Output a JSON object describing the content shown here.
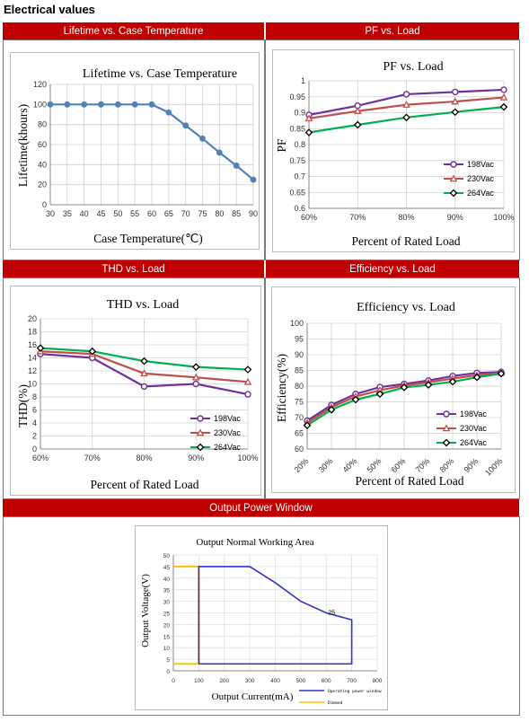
{
  "page_title": "Electrical values",
  "sections": {
    "lifetime": "Lifetime vs. Case Temperature",
    "pf": "PF vs. Load",
    "thd": "THD vs. Load",
    "efficiency": "Efficiency vs. Load",
    "opw": "Output Power Window"
  },
  "colors": {
    "header_bg": "#c00000",
    "s198": "#7030a0",
    "s230": "#c0504d",
    "s264": "#00b050",
    "lifetime_line": "#4f81bd",
    "operating": "#3333cc",
    "dimmed": "#ffc000"
  },
  "chart_data": [
    {
      "id": "lifetime",
      "type": "line",
      "title": "Lifetime vs. Case Temperature",
      "xlabel": "Case Temperature(℃)",
      "ylabel": "Lifetime(khours)",
      "x": [
        30,
        35,
        40,
        45,
        50,
        55,
        60,
        65,
        70,
        75,
        80,
        85,
        90
      ],
      "xticks": [
        "30",
        "35",
        "40",
        "45",
        "50",
        "55",
        "60",
        "65",
        "70",
        "75",
        "80",
        "85",
        "90"
      ],
      "ylim": [
        0,
        120
      ],
      "yticks": [
        "0",
        "20",
        "40",
        "60",
        "80",
        "100",
        "120"
      ],
      "grid": true,
      "series": [
        {
          "values": [
            100,
            100,
            100,
            100,
            100,
            100,
            100,
            92,
            79,
            66,
            52,
            39,
            25
          ]
        }
      ]
    },
    {
      "id": "pf",
      "type": "line",
      "title": "PF vs. Load",
      "xlabel": "Percent of Rated Load",
      "ylabel": "PF",
      "x": [
        60,
        70,
        80,
        90,
        100
      ],
      "xticks": [
        "60%",
        "70%",
        "80%",
        "90%",
        "100%"
      ],
      "ylim": [
        0.6,
        1.0
      ],
      "yticks": [
        "0.6",
        "0.65",
        "0.7",
        "0.75",
        "0.8",
        "0.85",
        "0.9",
        "0.95",
        "1"
      ],
      "grid": true,
      "legend": "bottom-right",
      "series": [
        {
          "name": "198Vac",
          "values": [
            0.893,
            0.922,
            0.958,
            0.965,
            0.972
          ]
        },
        {
          "name": "230Vac",
          "values": [
            0.882,
            0.905,
            0.925,
            0.935,
            0.948
          ]
        },
        {
          "name": "264Vac",
          "values": [
            0.838,
            0.862,
            0.885,
            0.902,
            0.918
          ]
        }
      ]
    },
    {
      "id": "thd",
      "type": "line",
      "title": "THD vs. Load",
      "xlabel": "Percent of Rated Load",
      "ylabel": "THD(%)",
      "x": [
        60,
        70,
        80,
        90,
        100
      ],
      "xticks": [
        "60%",
        "70%",
        "80%",
        "90%",
        "100%"
      ],
      "ylim": [
        0,
        20
      ],
      "yticks": [
        "0",
        "2",
        "4",
        "6",
        "8",
        "10",
        "12",
        "14",
        "16",
        "18",
        "20"
      ],
      "grid": true,
      "legend": "bottom-right",
      "series": [
        {
          "name": "198Vac",
          "values": [
            14.6,
            14.0,
            9.6,
            10.0,
            8.4
          ]
        },
        {
          "name": "230Vac",
          "values": [
            15.0,
            14.6,
            11.6,
            11.0,
            10.3
          ]
        },
        {
          "name": "264Vac",
          "values": [
            15.5,
            15.0,
            13.5,
            12.6,
            12.2
          ]
        }
      ]
    },
    {
      "id": "efficiency",
      "type": "line",
      "title": "Efficiency vs. Load",
      "xlabel": "Percent of Rated Load",
      "ylabel": "Efficiency(%)",
      "x": [
        20,
        30,
        40,
        50,
        60,
        70,
        80,
        90,
        100
      ],
      "xticks": [
        "20%",
        "30%",
        "40%",
        "50%",
        "60%",
        "70%",
        "80%",
        "90%",
        "100%"
      ],
      "ylim": [
        60,
        100
      ],
      "yticks": [
        "60",
        "65",
        "70",
        "75",
        "80",
        "85",
        "90",
        "95",
        "100"
      ],
      "grid": true,
      "legend": "bottom-right",
      "series": [
        {
          "name": "198Vac",
          "values": [
            69.0,
            74.0,
            77.5,
            79.7,
            80.7,
            81.8,
            83.2,
            84.2,
            84.5
          ]
        },
        {
          "name": "230Vac",
          "values": [
            68.3,
            73.3,
            76.7,
            78.7,
            80.2,
            81.2,
            82.4,
            83.5,
            84.2
          ]
        },
        {
          "name": "264Vac",
          "values": [
            67.5,
            72.5,
            75.7,
            77.5,
            79.6,
            80.4,
            81.4,
            82.8,
            84.0
          ]
        }
      ]
    },
    {
      "id": "opw",
      "type": "line",
      "title": "Output Normal Working Area",
      "xlabel": "Output Current(mA)",
      "ylabel": "Output Voltage(V)",
      "xlim": [
        0,
        800
      ],
      "xticks": [
        "0",
        "100",
        "200",
        "300",
        "400",
        "500",
        "600",
        "700",
        "800"
      ],
      "ylim": [
        0,
        50
      ],
      "yticks": [
        "0",
        "5",
        "10",
        "15",
        "20",
        "25",
        "30",
        "35",
        "40",
        "45",
        "50"
      ],
      "annotation": "25",
      "legend": "bottom-right",
      "series": [
        {
          "name": "Operating power window",
          "points": [
            [
              100,
              3
            ],
            [
              100,
              45
            ],
            [
              300,
              45
            ],
            [
              400,
              38
            ],
            [
              500,
              30
            ],
            [
              600,
              25
            ],
            [
              700,
              22
            ],
            [
              700,
              3
            ],
            [
              100,
              3
            ]
          ]
        },
        {
          "name": "Dimmed",
          "points": [
            [
              0,
              45
            ],
            [
              100,
              45
            ],
            [
              100,
              3
            ],
            [
              0,
              3
            ]
          ]
        }
      ]
    }
  ]
}
